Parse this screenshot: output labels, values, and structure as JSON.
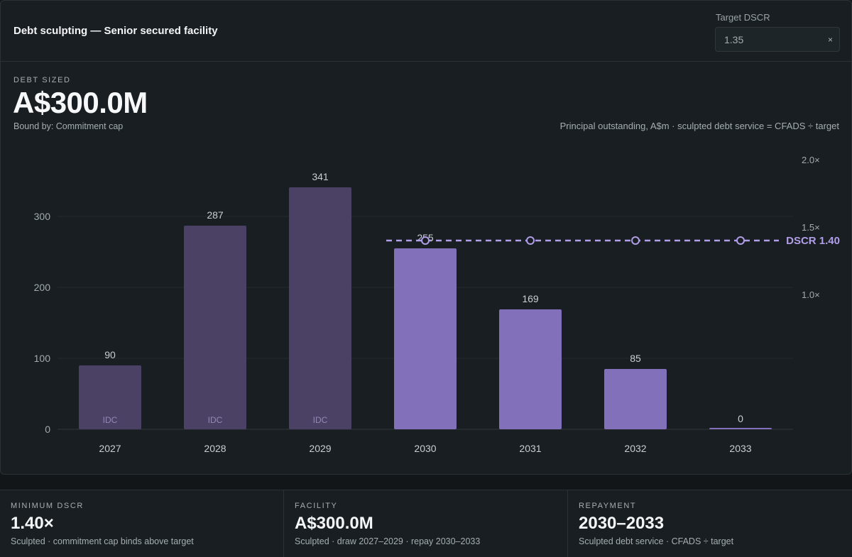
{
  "header": {
    "title": "Debt sculpting — Senior secured facility",
    "target_label": "Target DSCR",
    "target_value": "1.35",
    "clear_icon": "×"
  },
  "kpi": {
    "label": "DEBT SIZED",
    "value": "A$300.0M",
    "sub": "Bound by: Commitment cap"
  },
  "chart_caption": "Principal outstanding, A$m · sculpted debt service = CFADS ÷ target",
  "chart_data": {
    "type": "bar",
    "categories": [
      "2027",
      "2028",
      "2029",
      "2030",
      "2031",
      "2032",
      "2033"
    ],
    "values": [
      90,
      287,
      341,
      255,
      169,
      85,
      0
    ],
    "bar_tags": [
      "IDC",
      "IDC",
      "IDC",
      "",
      "",
      "",
      ""
    ],
    "phase": [
      "construction",
      "construction",
      "construction",
      "repayment",
      "repayment",
      "repayment",
      "repayment"
    ],
    "ylim": [
      0,
      300
    ],
    "y_ticks": [
      0,
      100,
      200,
      300
    ],
    "y_tick_labels": [
      "0",
      "100",
      "200",
      "300"
    ],
    "y2_ticks": [
      "1.0×",
      "1.5×",
      "2.0×"
    ],
    "y2_tick_values": [
      1.0,
      1.5,
      2.0
    ],
    "dscr_series": {
      "label": "DSCR 1.40",
      "x": [
        "2030",
        "2031",
        "2032",
        "2033"
      ],
      "values": [
        1.4,
        1.4,
        1.4,
        1.4
      ]
    },
    "grid": true,
    "colors": {
      "construction": "#4a4164",
      "repayment": "#8270ba",
      "dscr": "#b19ee8"
    }
  },
  "cards": [
    {
      "label": "MINIMUM DSCR",
      "value": "1.40×",
      "sub": "Sculpted · commitment cap binds above target"
    },
    {
      "label": "FACILITY",
      "value": "A$300.0M",
      "sub": "Sculpted · draw 2027–2029 · repay 2030–2033"
    },
    {
      "label": "REPAYMENT",
      "value": "2030–2033",
      "sub": "Sculpted debt service · CFADS ÷ target"
    }
  ]
}
